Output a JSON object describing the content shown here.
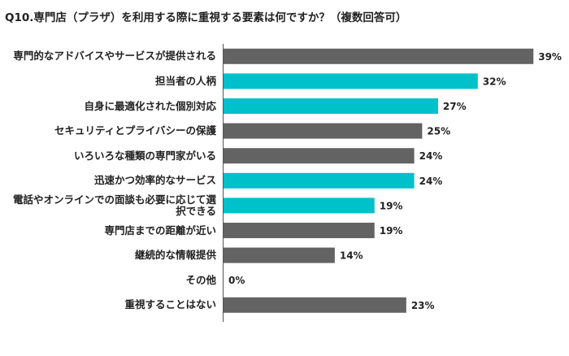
{
  "chart_data": {
    "type": "bar",
    "orientation": "horizontal",
    "title": "Q10.専門店（プラザ）を利用する際に重視する要素は何ですか？（複数回答可）",
    "categories": [
      "専門的なアドバイスやサービスが提供される",
      "担当者の人柄",
      "自身に最適化された個別対応",
      "セキュリティとプライバシーの保護",
      "いろいろな種類の専門家がいる",
      "迅速かつ効率的なサービス",
      "電話やオンラインでの面談も必要に応じて選択できる",
      "専門店までの距離が近い",
      "継続的な情報提供",
      "その他",
      "重視することはない"
    ],
    "values": [
      39,
      32,
      27,
      25,
      24,
      24,
      19,
      19,
      14,
      0,
      23
    ],
    "value_labels": [
      "39%",
      "32%",
      "27%",
      "25%",
      "24%",
      "24%",
      "19%",
      "19%",
      "14%",
      "0%",
      "23%"
    ],
    "colors": [
      "#636363",
      "#00c0ca",
      "#00c0ca",
      "#636363",
      "#636363",
      "#00c0ca",
      "#00c0ca",
      "#636363",
      "#636363",
      "#636363",
      "#636363"
    ],
    "xlim": [
      0,
      40
    ]
  }
}
